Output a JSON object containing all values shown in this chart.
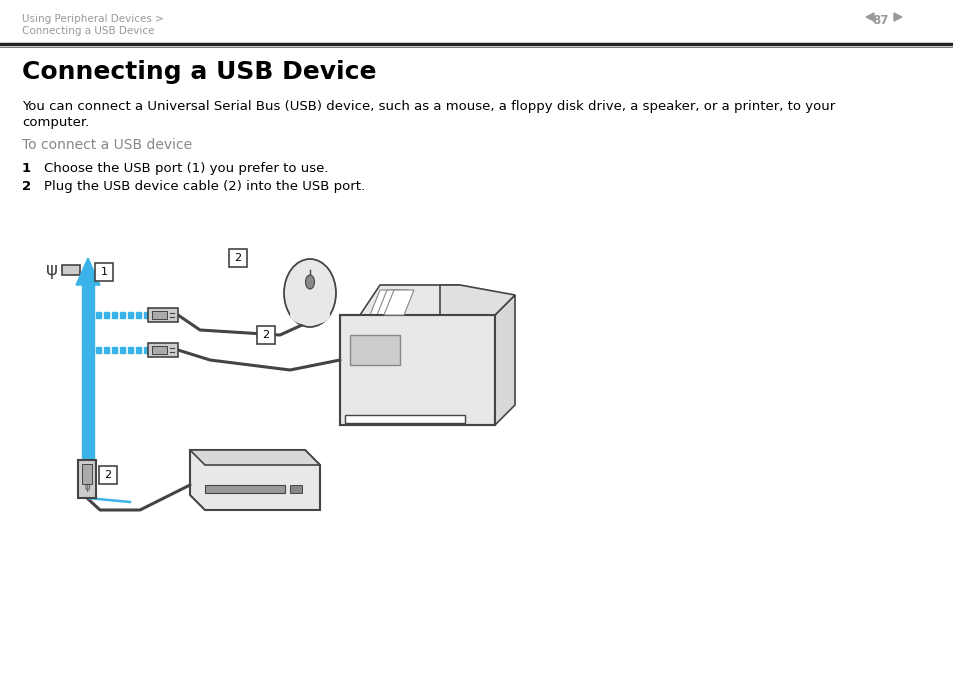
{
  "bg_color": "#ffffff",
  "breadcrumb_line1": "Using Peripheral Devices >",
  "breadcrumb_line2": "Connecting a USB Device",
  "breadcrumb_color": "#999999",
  "page_num": "87",
  "page_color": "#999999",
  "title": "Connecting a USB Device",
  "title_fontsize": 18,
  "title_color": "#000000",
  "body_text": "You can connect a Universal Serial Bus (USB) device, such as a mouse, a floppy disk drive, a speaker, or a printer, to your computer.",
  "body_fontsize": 9.5,
  "body_color": "#000000",
  "subheading": "To connect a USB device",
  "subheading_color": "#888888",
  "subheading_fontsize": 10,
  "step1_num": "1",
  "step1_text": "Choose the USB port (1) you prefer to use.",
  "step2_num": "2",
  "step2_text": "Plug the USB device cable (2) into the USB port.",
  "step_fontsize": 9.5,
  "step_color": "#000000",
  "blue_color": "#3ab4e8",
  "dark_gray": "#444444",
  "mid_gray": "#888888",
  "light_gray": "#cccccc",
  "lighter_gray": "#e8e8e8"
}
